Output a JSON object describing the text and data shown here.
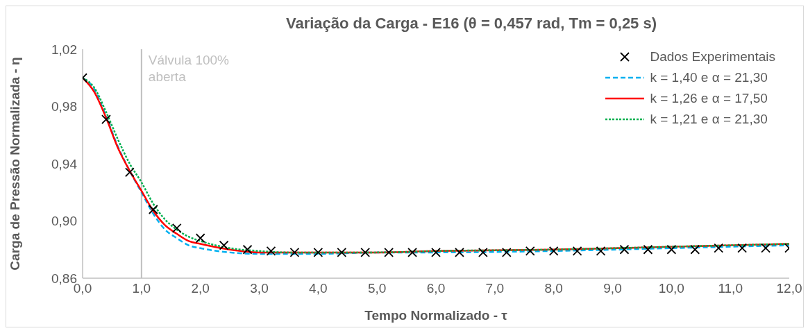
{
  "chart_data": {
    "type": "line",
    "title": "Variação da Carga - E16 (θ = 0,457 rad, Tm = 0,25 s)",
    "xlabel": "Tempo Normalizado - τ",
    "ylabel": "Carga de Pressão Normalizada - η",
    "xlim": [
      0,
      12
    ],
    "xticks": [
      {
        "value": 0,
        "label": "0,0"
      },
      {
        "value": 1,
        "label": "1,0"
      },
      {
        "value": 2,
        "label": "2,0"
      },
      {
        "value": 3,
        "label": "3,0"
      },
      {
        "value": 4,
        "label": "4,0"
      },
      {
        "value": 5,
        "label": "5,0"
      },
      {
        "value": 6,
        "label": "6,0"
      },
      {
        "value": 7,
        "label": "7,0"
      },
      {
        "value": 8,
        "label": "8,0"
      },
      {
        "value": 9,
        "label": "9,0"
      },
      {
        "value": 10,
        "label": "10,0"
      },
      {
        "value": 11,
        "label": "11,0"
      },
      {
        "value": 12,
        "label": "12,0"
      }
    ],
    "ylim": [
      0.86,
      1.02
    ],
    "yticks": [
      {
        "value": 0.86,
        "label": "0,86"
      },
      {
        "value": 0.9,
        "label": "0,90"
      },
      {
        "value": 0.94,
        "label": "0,94"
      },
      {
        "value": 0.98,
        "label": "0,98"
      },
      {
        "value": 1.02,
        "label": "1,02"
      }
    ],
    "grid": false,
    "legend": "top right",
    "ref_lines": [
      {
        "axis": "x",
        "value": 1,
        "label": "Válvula 100%\naberta",
        "color": "#bfbfbf"
      }
    ],
    "series": [
      {
        "name": "Dados Experimentais",
        "type": "scatter",
        "marker": "cross",
        "color": "#000000",
        "x": [
          0,
          0.4,
          0.8,
          1.2,
          1.6,
          2.0,
          2.4,
          2.8,
          3.2,
          3.6,
          4.0,
          4.4,
          4.8,
          5.2,
          5.6,
          6.0,
          6.4,
          6.8,
          7.2,
          7.6,
          8.0,
          8.4,
          8.8,
          9.2,
          9.6,
          10.0,
          10.4,
          10.8,
          11.2,
          11.6,
          12.0
        ],
        "values": [
          1.0,
          0.971,
          0.934,
          0.908,
          0.895,
          0.888,
          0.883,
          0.88,
          0.879,
          0.878,
          0.878,
          0.878,
          0.878,
          0.878,
          0.878,
          0.878,
          0.878,
          0.878,
          0.878,
          0.879,
          0.879,
          0.879,
          0.879,
          0.88,
          0.88,
          0.88,
          0.88,
          0.881,
          0.881,
          0.881,
          0.881
        ]
      },
      {
        "name": "k = 1,40 e α = 21,30",
        "marker": "none",
        "line_style": "dashed",
        "color": "#00b0f0",
        "x": [
          0,
          0.2,
          0.4,
          0.6,
          0.8,
          1.0,
          1.2,
          1.4,
          1.6,
          1.8,
          2.0,
          2.5,
          3.0,
          3.5,
          4.0,
          5.0,
          6.0,
          8.0,
          10.0,
          12.0
        ],
        "values": [
          1.0,
          0.992,
          0.973,
          0.952,
          0.935,
          0.92,
          0.905,
          0.894,
          0.888,
          0.883,
          0.881,
          0.878,
          0.877,
          0.877,
          0.877,
          0.878,
          0.878,
          0.879,
          0.881,
          0.883
        ]
      },
      {
        "name": "k = 1,26 e α = 17,50",
        "marker": "none",
        "line_style": "solid",
        "color": "#ff0000",
        "x": [
          0,
          0.2,
          0.4,
          0.6,
          0.8,
          1.0,
          1.2,
          1.4,
          1.6,
          1.8,
          2.0,
          2.5,
          3.0,
          3.5,
          4.0,
          5.0,
          6.0,
          8.0,
          10.0,
          12.0
        ],
        "values": [
          1.0,
          0.99,
          0.972,
          0.951,
          0.935,
          0.921,
          0.907,
          0.897,
          0.891,
          0.886,
          0.884,
          0.88,
          0.878,
          0.878,
          0.878,
          0.878,
          0.879,
          0.88,
          0.882,
          0.884
        ]
      },
      {
        "name": "k = 1,21 e α = 21,30",
        "marker": "none",
        "line_style": "dotted",
        "color": "#00b050",
        "x": [
          0,
          0.2,
          0.4,
          0.6,
          0.8,
          1.0,
          1.2,
          1.4,
          1.6,
          1.8,
          2.0,
          2.5,
          3.0,
          3.5,
          4.0,
          5.0,
          6.0,
          8.0,
          10.0,
          12.0
        ],
        "values": [
          1.0,
          0.993,
          0.976,
          0.957,
          0.94,
          0.927,
          0.912,
          0.901,
          0.894,
          0.889,
          0.886,
          0.881,
          0.879,
          0.878,
          0.878,
          0.878,
          0.879,
          0.88,
          0.882,
          0.884
        ]
      }
    ]
  }
}
